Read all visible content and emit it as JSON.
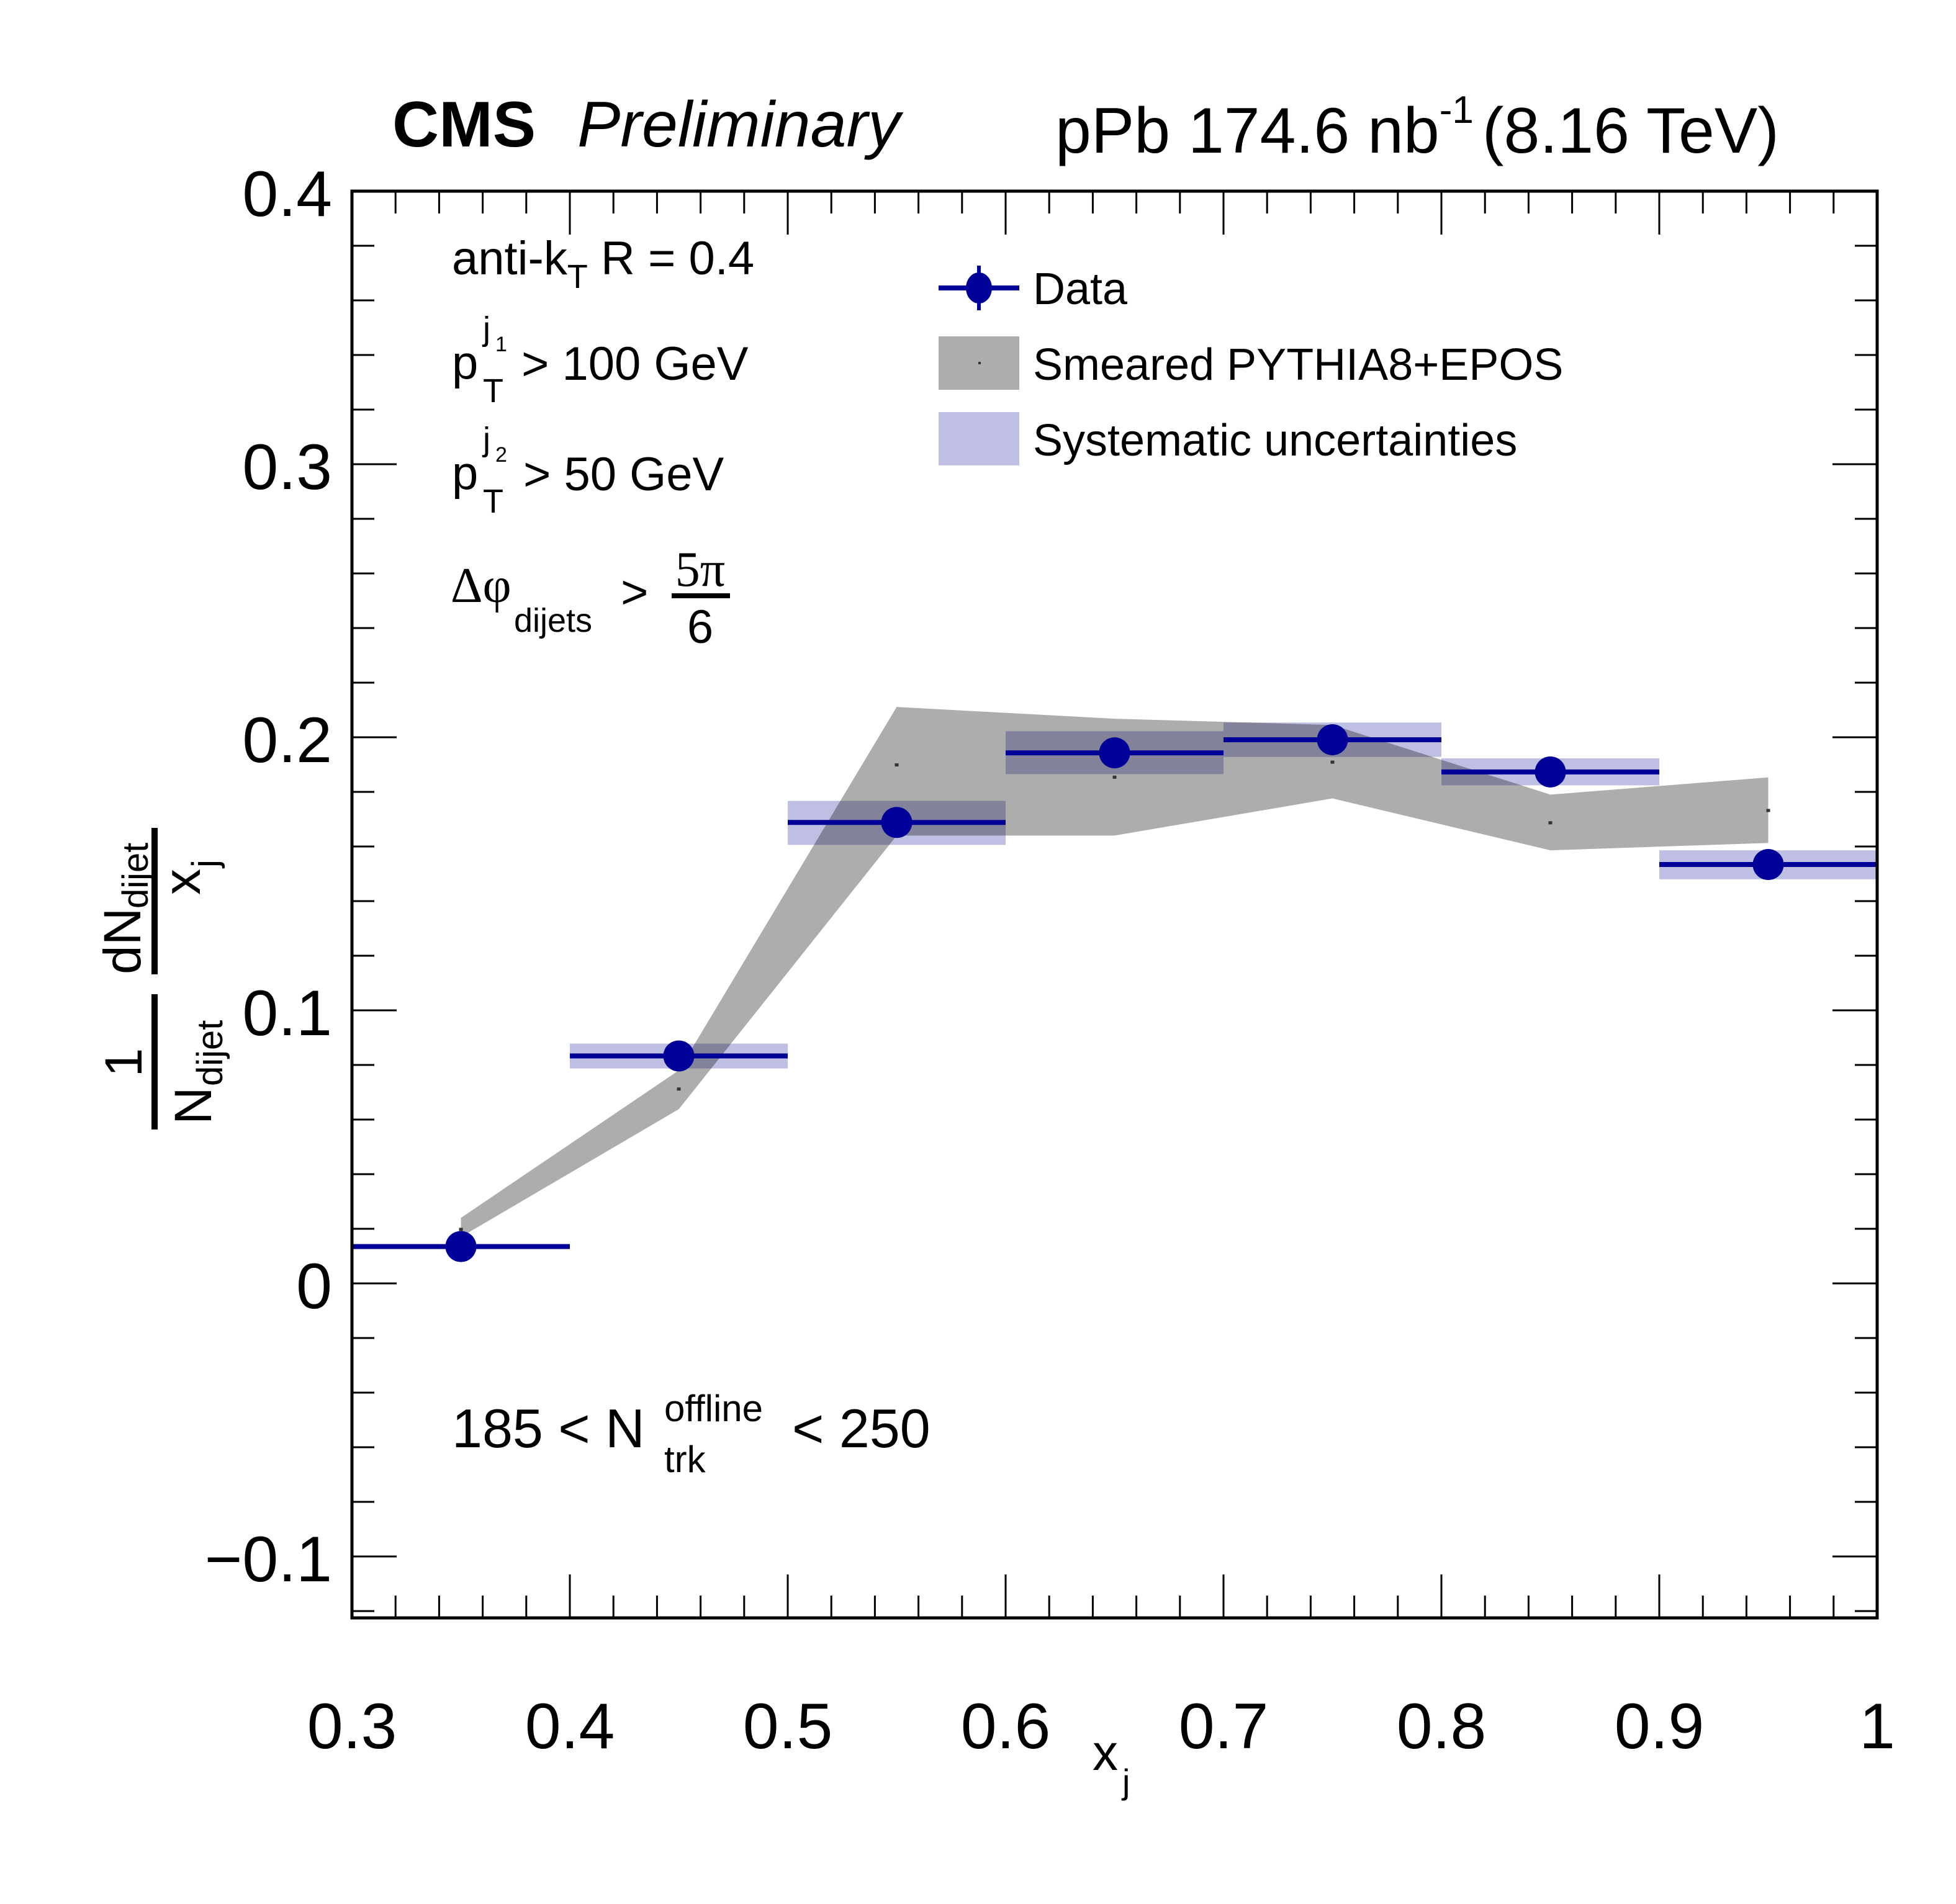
{
  "header": {
    "experiment": "CMS",
    "status": "Preliminary",
    "system": "pPb 174.6 nb",
    "lumi_exp": "-1",
    "energy": "(8.16 TeV)"
  },
  "annotations": {
    "algo_main": "anti-k",
    "algo_sub": "T",
    "algo_rest": " R = 0.4",
    "pt1_p": "p",
    "pt1_sub": "T",
    "pt1_sup": "j",
    "pt1_supsub": "1",
    "pt1_rest": "> 100 GeV",
    "pt2_p": "p",
    "pt2_sub": "T",
    "pt2_sup": "j",
    "pt2_supsub": "2",
    "pt2_rest": "> 50 GeV",
    "dphi_sym": "Δφ",
    "dphi_sub": "dijets",
    "dphi_gt": ">",
    "dphi_num": "5π",
    "dphi_den": "6",
    "mult_left": "185 < N",
    "mult_sup": "offline",
    "mult_sub": "trk",
    "mult_right": "< 250"
  },
  "colors": {
    "data": "#000099",
    "mc_band": "#adadad",
    "syst_band": "#bfbfe3",
    "overlap": "#868699",
    "frame": "#000000"
  },
  "chart_data": {
    "type": "scatter",
    "title": "",
    "xlabel": "x",
    "xlabel_sub": "j",
    "ylabel": {
      "prefix_num": "1",
      "prefix_den": "N",
      "prefix_den_sub": "dijet",
      "num": "dN",
      "num_sub": "dijet",
      "den": "x",
      "den_sub": "j"
    },
    "xlim": [
      0.3,
      1.0
    ],
    "ylim": [
      -0.1225,
      0.4
    ],
    "x_ticks": [
      0.3,
      0.4,
      0.5,
      0.6,
      0.7,
      0.8,
      0.9,
      1.0
    ],
    "x_tick_labels": [
      "0.3",
      "0.4",
      "0.5",
      "0.6",
      "0.7",
      "0.8",
      "0.9",
      "1"
    ],
    "x_minor_step": 0.02,
    "y_ticks": [
      -0.1,
      0.0,
      0.1,
      0.2,
      0.3,
      0.4
    ],
    "y_tick_labels": [
      "−0.1",
      "0",
      "0.1",
      "0.2",
      "0.3",
      "0.4"
    ],
    "y_minor_step": 0.02,
    "grid": false,
    "legend": {
      "position": "top-center",
      "entries": [
        {
          "label": "Data",
          "marker": "circle-with-errorbar"
        },
        {
          "label": "Smeared PYTHIA8+EPOS",
          "marker": "gray-band"
        },
        {
          "label": "Systematic uncertainties",
          "marker": "blue-band"
        }
      ]
    },
    "series": [
      {
        "name": "Data",
        "type": "points",
        "x": [
          0.35,
          0.45,
          0.55,
          0.65,
          0.75,
          0.85,
          0.95
        ],
        "x_bin_low": [
          0.3,
          0.4,
          0.5,
          0.6,
          0.7,
          0.8,
          0.9
        ],
        "x_bin_high": [
          0.4,
          0.5,
          0.6,
          0.7,
          0.8,
          0.9,
          1.0
        ],
        "y": [
          0.0135,
          0.0833,
          0.1688,
          0.1943,
          0.1991,
          0.1873,
          0.1534
        ]
      },
      {
        "name": "Systematic uncertainties",
        "type": "boxes",
        "y_low": [
          0.013,
          0.0787,
          0.1606,
          0.1865,
          0.1928,
          0.1824,
          0.148
        ],
        "y_high": [
          0.014,
          0.0878,
          0.1767,
          0.2022,
          0.2054,
          0.1923,
          0.1586
        ]
      },
      {
        "name": "Smeared PYTHIA8+EPOS",
        "type": "band",
        "x": [
          0.35,
          0.45,
          0.55,
          0.65,
          0.75,
          0.85,
          0.95
        ],
        "y": [
          0.0199,
          0.0713,
          0.19,
          0.1855,
          0.191,
          0.1688,
          0.1733
        ],
        "y_low": [
          0.017,
          0.0638,
          0.164,
          0.164,
          0.1776,
          0.1586,
          0.1613
        ],
        "y_high": [
          0.024,
          0.078,
          0.2111,
          0.2068,
          0.2045,
          0.179,
          0.1853
        ]
      }
    ]
  }
}
